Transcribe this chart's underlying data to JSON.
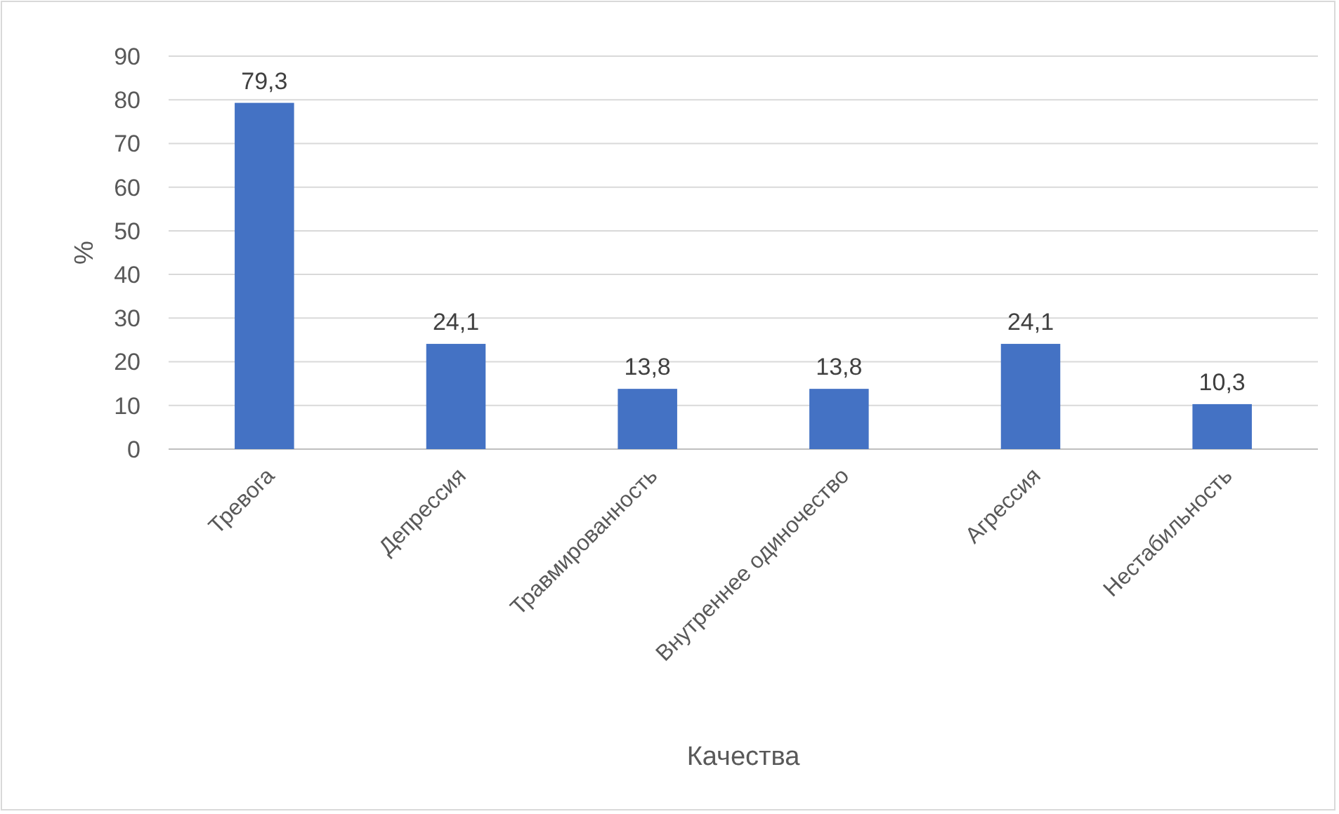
{
  "chart_data": {
    "type": "bar",
    "xlabel": "Качества",
    "ylabel": "%",
    "categories": [
      "Тревога",
      "Депрессия",
      "Травмированность",
      "Внутреннее одиночество",
      "Агрессия",
      "Нестабильность"
    ],
    "values": [
      79.3,
      24.1,
      13.8,
      13.8,
      24.1,
      10.3
    ],
    "value_labels": [
      "79,3",
      "24,1",
      "13,8",
      "13,8",
      "24,1",
      "10,3"
    ],
    "color": "#4472c4",
    "ylim": [
      0,
      90
    ],
    "yticks": [
      0,
      10,
      20,
      30,
      40,
      50,
      60,
      70,
      80,
      90
    ],
    "grid": "y"
  }
}
